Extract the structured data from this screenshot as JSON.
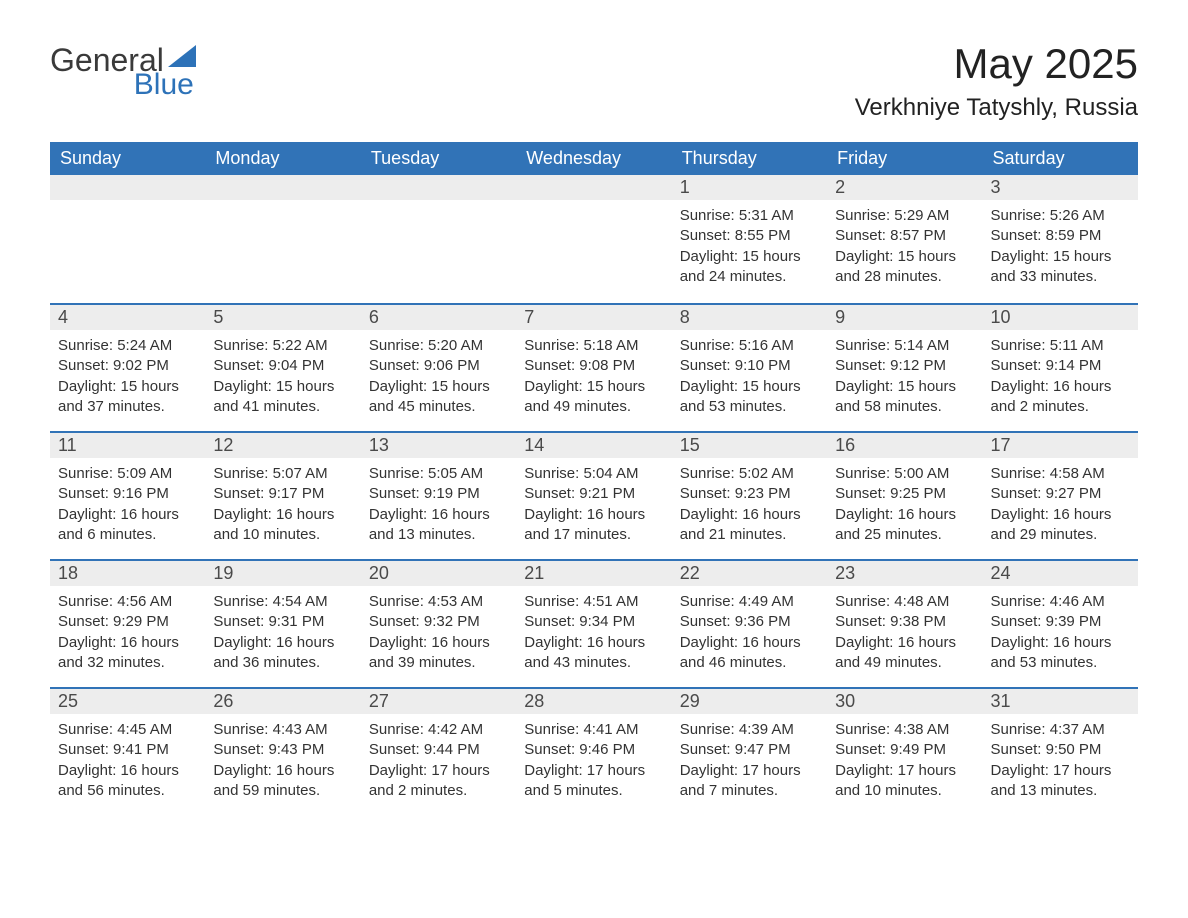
{
  "logo": {
    "word1": "General",
    "word2": "Blue",
    "triangle_color": "#2d72b8",
    "text_color": "#3a3a3a"
  },
  "title": "May 2025",
  "location": "Verkhniye Tatyshly, Russia",
  "colors": {
    "header_bg": "#3173b7",
    "header_text": "#ffffff",
    "daynum_bg": "#ededed",
    "daynum_text": "#4a4a4a",
    "row_border": "#3173b7",
    "body_text": "#333333",
    "page_bg": "#ffffff"
  },
  "typography": {
    "title_fontsize": 42,
    "location_fontsize": 24,
    "dayheader_fontsize": 18,
    "daynum_fontsize": 18,
    "body_fontsize": 15
  },
  "days_of_week": [
    "Sunday",
    "Monday",
    "Tuesday",
    "Wednesday",
    "Thursday",
    "Friday",
    "Saturday"
  ],
  "weeks": [
    [
      null,
      null,
      null,
      null,
      {
        "num": "1",
        "sunrise": "Sunrise: 5:31 AM",
        "sunset": "Sunset: 8:55 PM",
        "daylight": "Daylight: 15 hours and 24 minutes."
      },
      {
        "num": "2",
        "sunrise": "Sunrise: 5:29 AM",
        "sunset": "Sunset: 8:57 PM",
        "daylight": "Daylight: 15 hours and 28 minutes."
      },
      {
        "num": "3",
        "sunrise": "Sunrise: 5:26 AM",
        "sunset": "Sunset: 8:59 PM",
        "daylight": "Daylight: 15 hours and 33 minutes."
      }
    ],
    [
      {
        "num": "4",
        "sunrise": "Sunrise: 5:24 AM",
        "sunset": "Sunset: 9:02 PM",
        "daylight": "Daylight: 15 hours and 37 minutes."
      },
      {
        "num": "5",
        "sunrise": "Sunrise: 5:22 AM",
        "sunset": "Sunset: 9:04 PM",
        "daylight": "Daylight: 15 hours and 41 minutes."
      },
      {
        "num": "6",
        "sunrise": "Sunrise: 5:20 AM",
        "sunset": "Sunset: 9:06 PM",
        "daylight": "Daylight: 15 hours and 45 minutes."
      },
      {
        "num": "7",
        "sunrise": "Sunrise: 5:18 AM",
        "sunset": "Sunset: 9:08 PM",
        "daylight": "Daylight: 15 hours and 49 minutes."
      },
      {
        "num": "8",
        "sunrise": "Sunrise: 5:16 AM",
        "sunset": "Sunset: 9:10 PM",
        "daylight": "Daylight: 15 hours and 53 minutes."
      },
      {
        "num": "9",
        "sunrise": "Sunrise: 5:14 AM",
        "sunset": "Sunset: 9:12 PM",
        "daylight": "Daylight: 15 hours and 58 minutes."
      },
      {
        "num": "10",
        "sunrise": "Sunrise: 5:11 AM",
        "sunset": "Sunset: 9:14 PM",
        "daylight": "Daylight: 16 hours and 2 minutes."
      }
    ],
    [
      {
        "num": "11",
        "sunrise": "Sunrise: 5:09 AM",
        "sunset": "Sunset: 9:16 PM",
        "daylight": "Daylight: 16 hours and 6 minutes."
      },
      {
        "num": "12",
        "sunrise": "Sunrise: 5:07 AM",
        "sunset": "Sunset: 9:17 PM",
        "daylight": "Daylight: 16 hours and 10 minutes."
      },
      {
        "num": "13",
        "sunrise": "Sunrise: 5:05 AM",
        "sunset": "Sunset: 9:19 PM",
        "daylight": "Daylight: 16 hours and 13 minutes."
      },
      {
        "num": "14",
        "sunrise": "Sunrise: 5:04 AM",
        "sunset": "Sunset: 9:21 PM",
        "daylight": "Daylight: 16 hours and 17 minutes."
      },
      {
        "num": "15",
        "sunrise": "Sunrise: 5:02 AM",
        "sunset": "Sunset: 9:23 PM",
        "daylight": "Daylight: 16 hours and 21 minutes."
      },
      {
        "num": "16",
        "sunrise": "Sunrise: 5:00 AM",
        "sunset": "Sunset: 9:25 PM",
        "daylight": "Daylight: 16 hours and 25 minutes."
      },
      {
        "num": "17",
        "sunrise": "Sunrise: 4:58 AM",
        "sunset": "Sunset: 9:27 PM",
        "daylight": "Daylight: 16 hours and 29 minutes."
      }
    ],
    [
      {
        "num": "18",
        "sunrise": "Sunrise: 4:56 AM",
        "sunset": "Sunset: 9:29 PM",
        "daylight": "Daylight: 16 hours and 32 minutes."
      },
      {
        "num": "19",
        "sunrise": "Sunrise: 4:54 AM",
        "sunset": "Sunset: 9:31 PM",
        "daylight": "Daylight: 16 hours and 36 minutes."
      },
      {
        "num": "20",
        "sunrise": "Sunrise: 4:53 AM",
        "sunset": "Sunset: 9:32 PM",
        "daylight": "Daylight: 16 hours and 39 minutes."
      },
      {
        "num": "21",
        "sunrise": "Sunrise: 4:51 AM",
        "sunset": "Sunset: 9:34 PM",
        "daylight": "Daylight: 16 hours and 43 minutes."
      },
      {
        "num": "22",
        "sunrise": "Sunrise: 4:49 AM",
        "sunset": "Sunset: 9:36 PM",
        "daylight": "Daylight: 16 hours and 46 minutes."
      },
      {
        "num": "23",
        "sunrise": "Sunrise: 4:48 AM",
        "sunset": "Sunset: 9:38 PM",
        "daylight": "Daylight: 16 hours and 49 minutes."
      },
      {
        "num": "24",
        "sunrise": "Sunrise: 4:46 AM",
        "sunset": "Sunset: 9:39 PM",
        "daylight": "Daylight: 16 hours and 53 minutes."
      }
    ],
    [
      {
        "num": "25",
        "sunrise": "Sunrise: 4:45 AM",
        "sunset": "Sunset: 9:41 PM",
        "daylight": "Daylight: 16 hours and 56 minutes."
      },
      {
        "num": "26",
        "sunrise": "Sunrise: 4:43 AM",
        "sunset": "Sunset: 9:43 PM",
        "daylight": "Daylight: 16 hours and 59 minutes."
      },
      {
        "num": "27",
        "sunrise": "Sunrise: 4:42 AM",
        "sunset": "Sunset: 9:44 PM",
        "daylight": "Daylight: 17 hours and 2 minutes."
      },
      {
        "num": "28",
        "sunrise": "Sunrise: 4:41 AM",
        "sunset": "Sunset: 9:46 PM",
        "daylight": "Daylight: 17 hours and 5 minutes."
      },
      {
        "num": "29",
        "sunrise": "Sunrise: 4:39 AM",
        "sunset": "Sunset: 9:47 PM",
        "daylight": "Daylight: 17 hours and 7 minutes."
      },
      {
        "num": "30",
        "sunrise": "Sunrise: 4:38 AM",
        "sunset": "Sunset: 9:49 PM",
        "daylight": "Daylight: 17 hours and 10 minutes."
      },
      {
        "num": "31",
        "sunrise": "Sunrise: 4:37 AM",
        "sunset": "Sunset: 9:50 PM",
        "daylight": "Daylight: 17 hours and 13 minutes."
      }
    ]
  ]
}
